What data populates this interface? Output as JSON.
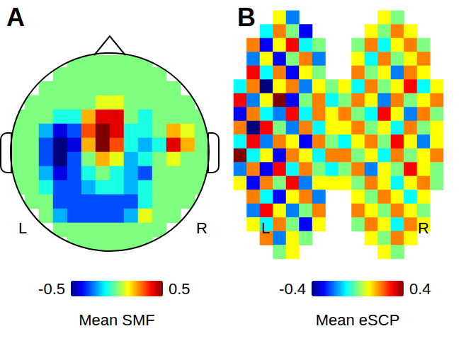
{
  "chart_data": [
    {
      "type": "heatmap",
      "title": "A",
      "annotations": [
        "L",
        "R"
      ],
      "tick_labels": false,
      "colorbar": {
        "range": [
          -0.5,
          0.5
        ],
        "ticks": [
          -0.5,
          0.5
        ],
        "label": "Mean SMF"
      },
      "cells": [
        [
          null,
          null,
          null,
          null,
          0,
          0,
          0,
          0,
          0,
          0,
          null,
          null,
          null,
          null
        ],
        [
          null,
          null,
          null,
          0,
          0,
          0,
          0,
          0,
          0,
          0,
          0,
          null,
          null,
          null
        ],
        [
          null,
          null,
          0,
          0,
          0,
          0,
          0,
          0,
          0,
          0,
          0,
          0,
          null,
          null
        ],
        [
          null,
          0,
          0,
          0,
          0,
          0,
          0.1,
          0.1,
          0,
          0,
          0,
          0,
          0,
          null
        ],
        [
          0,
          0,
          0,
          -0.1,
          -0.1,
          0.2,
          0.4,
          0.4,
          0,
          -0.1,
          0,
          0,
          0,
          0
        ],
        [
          0,
          0,
          -0.2,
          -0.4,
          -0.3,
          0.3,
          0.5,
          0.4,
          -0.1,
          -0.1,
          0,
          0.2,
          0.1,
          0
        ],
        [
          0,
          0,
          -0.3,
          -0.5,
          -0.4,
          0.2,
          0.5,
          0.3,
          -0.1,
          -0.2,
          -0.1,
          0.4,
          0.2,
          0
        ],
        [
          0,
          0,
          -0.3,
          -0.5,
          -0.3,
          0,
          0.2,
          0.1,
          -0.2,
          -0.1,
          0,
          0.1,
          0,
          0
        ],
        [
          0,
          0,
          -0.2,
          -0.4,
          -0.3,
          -0.1,
          0,
          -0.1,
          -0.2,
          -0.3,
          0,
          0,
          0,
          0
        ],
        [
          0,
          0,
          -0.1,
          -0.3,
          -0.3,
          -0.2,
          -0.1,
          -0.1,
          -0.2,
          -0.1,
          0,
          0,
          0,
          0
        ],
        [
          null,
          0,
          0,
          -0.3,
          -0.3,
          -0.3,
          -0.3,
          -0.3,
          -0.3,
          -0.1,
          0,
          0,
          0,
          null
        ],
        [
          null,
          null,
          0,
          -0.2,
          -0.3,
          -0.3,
          -0.3,
          -0.3,
          -0.2,
          0.1,
          0,
          0,
          null,
          null
        ],
        [
          null,
          null,
          null,
          0,
          0,
          0,
          0,
          0,
          0,
          0,
          0,
          null,
          null,
          null
        ],
        [
          null,
          null,
          null,
          null,
          0,
          0,
          0,
          0,
          0,
          0,
          null,
          null,
          null,
          null
        ]
      ]
    },
    {
      "type": "heatmap",
      "title": "B",
      "annotations": [
        "L",
        "R"
      ],
      "tick_labels": false,
      "colorbar": {
        "range": [
          -0.4,
          0.4
        ],
        "ticks": [
          -0.4,
          0.4
        ],
        "label": "Mean eSCP"
      },
      "cells": [
        [
          null,
          null,
          null,
          0.1,
          -0.2,
          null,
          null,
          null,
          null,
          null,
          null,
          0.1,
          0.0,
          null,
          null,
          null
        ],
        [
          null,
          null,
          -0.1,
          0.2,
          0.0,
          -0.3,
          null,
          null,
          null,
          null,
          0.1,
          0.0,
          0.2,
          0.1,
          null,
          null
        ],
        [
          null,
          0.2,
          -0.3,
          0.1,
          0.3,
          -0.1,
          0.0,
          null,
          null,
          0.0,
          0.2,
          -0.1,
          0.1,
          0.2,
          0.0,
          null
        ],
        [
          null,
          -0.2,
          0.1,
          -0.3,
          0.0,
          0.2,
          -0.2,
          null,
          null,
          0.1,
          -0.1,
          0.2,
          0.0,
          0.1,
          0.2,
          null
        ],
        [
          null,
          0.3,
          -0.1,
          0.2,
          -0.3,
          0.1,
          0.0,
          null,
          null,
          0.2,
          0.0,
          0.1,
          -0.2,
          0.2,
          0.1,
          null
        ],
        [
          -0.1,
          0.2,
          -0.4,
          0.1,
          0.2,
          -0.2,
          0.1,
          0.0,
          0.1,
          -0.1,
          0.2,
          0.0,
          0.1,
          0.3,
          -0.1,
          0.1
        ],
        [
          0.3,
          -0.2,
          0.1,
          0.4,
          -0.3,
          0.0,
          0.2,
          -0.1,
          0.0,
          0.2,
          0.1,
          -0.2,
          0.2,
          0.0,
          0.1,
          0.2
        ],
        [
          -0.3,
          0.2,
          -0.1,
          -0.2,
          0.3,
          -0.1,
          0.2,
          0.1,
          0.2,
          0.0,
          -0.1,
          0.3,
          0.1,
          -0.2,
          0.2,
          0.0
        ],
        [
          0.2,
          -0.4,
          0.3,
          0.0,
          -0.2,
          0.2,
          -0.1,
          0.1,
          0.1,
          0.2,
          0.0,
          0.1,
          -0.1,
          0.2,
          0.0,
          0.1
        ],
        [
          -0.1,
          0.3,
          -0.2,
          0.2,
          0.1,
          -0.3,
          0.2,
          0.0,
          -0.1,
          0.1,
          0.2,
          0.0,
          0.3,
          0.1,
          -0.2,
          0.1
        ],
        [
          0.4,
          -0.1,
          0.1,
          -0.3,
          0.2,
          0.1,
          -0.1,
          0.2,
          0.2,
          0.0,
          0.1,
          -0.1,
          0.2,
          0.0,
          0.1,
          0.2
        ],
        [
          -0.2,
          0.2,
          -0.3,
          0.3,
          -0.1,
          0.2,
          0.0,
          -0.1,
          0.0,
          0.2,
          -0.2,
          0.1,
          0.0,
          0.3,
          0.1,
          0.0
        ],
        [
          0.1,
          -0.3,
          0.2,
          0.0,
          0.3,
          -0.2,
          0.1,
          0.1,
          0.1,
          0.0,
          0.2,
          0.1,
          -0.1,
          0.1,
          0.2,
          0.0
        ],
        [
          null,
          0.2,
          -0.1,
          -0.3,
          0.1,
          0.2,
          -0.2,
          null,
          null,
          0.1,
          0.0,
          0.2,
          0.1,
          -0.1,
          0.1,
          null
        ],
        [
          null,
          -0.2,
          0.3,
          0.1,
          -0.2,
          0.0,
          0.2,
          null,
          null,
          0.2,
          0.1,
          0.0,
          0.2,
          0.1,
          0.0,
          null
        ],
        [
          null,
          0.1,
          -0.1,
          0.2,
          0.0,
          -0.3,
          0.1,
          null,
          null,
          0.0,
          0.2,
          0.1,
          -0.1,
          0.2,
          0.1,
          null
        ],
        [
          null,
          null,
          0.2,
          -0.2,
          0.1,
          0.0,
          null,
          null,
          null,
          null,
          0.1,
          0.0,
          0.2,
          0.1,
          null,
          null
        ],
        [
          null,
          null,
          null,
          0.0,
          0.1,
          null,
          null,
          null,
          null,
          null,
          null,
          0.1,
          0.0,
          null,
          null,
          null
        ]
      ]
    }
  ]
}
